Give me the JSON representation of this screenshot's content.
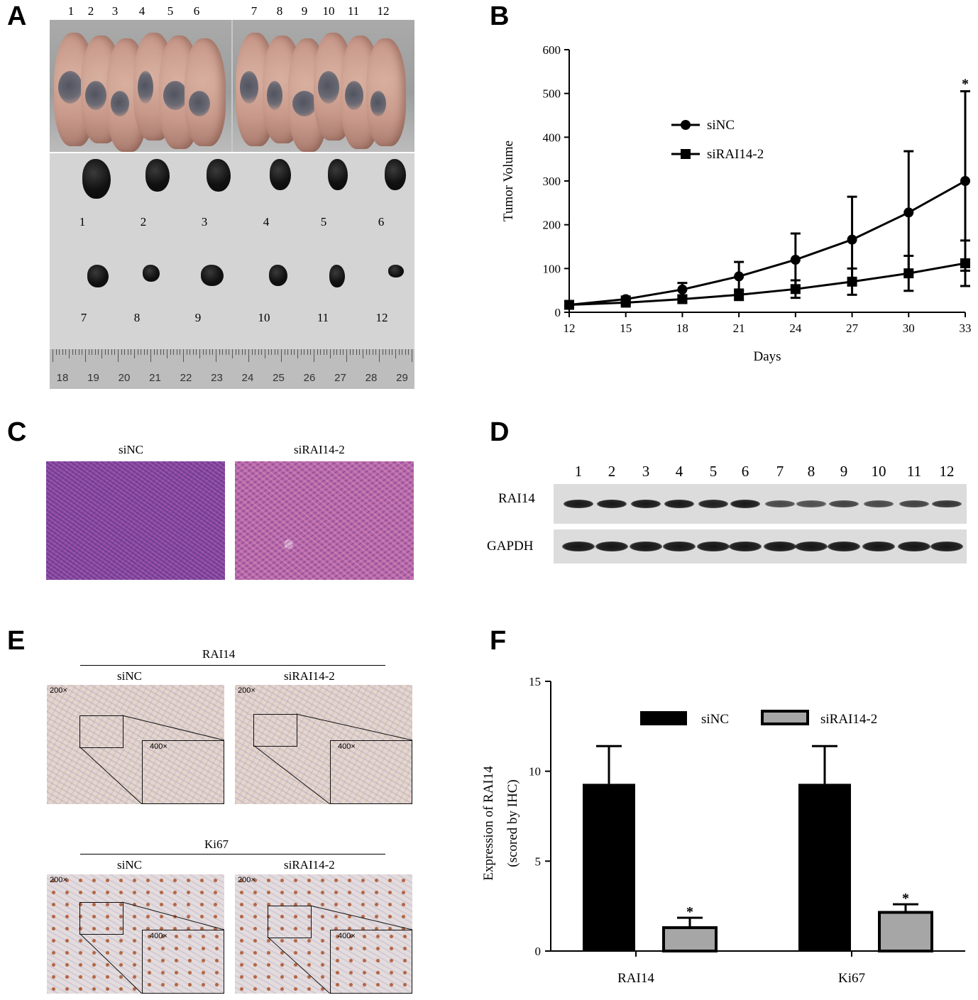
{
  "panels": {
    "a": "A",
    "b": "B",
    "c": "C",
    "d": "D",
    "e": "E",
    "f": "F"
  },
  "panel_a": {
    "mouse_numbers": [
      "1",
      "2",
      "3",
      "4",
      "5",
      "6",
      "7",
      "8",
      "9",
      "10",
      "11",
      "12"
    ],
    "tumor_numbers": [
      "1",
      "2",
      "3",
      "4",
      "5",
      "6",
      "7",
      "8",
      "9",
      "10",
      "11",
      "12"
    ],
    "ruler_ticks": [
      "18",
      "19",
      "20",
      "21",
      "22",
      "23",
      "24",
      "25",
      "26",
      "27",
      "28",
      "29"
    ]
  },
  "panel_c": {
    "left_label": "siNC",
    "right_label": "siRAI14-2"
  },
  "panel_d": {
    "lanes": [
      "1",
      "2",
      "3",
      "4",
      "5",
      "6",
      "7",
      "8",
      "9",
      "10",
      "11",
      "12"
    ],
    "row1": "RAI14",
    "row2": "GAPDH",
    "rai14_band_intensity": [
      0.9,
      0.9,
      0.9,
      0.9,
      0.85,
      0.9,
      0.55,
      0.5,
      0.6,
      0.55,
      0.6,
      0.7
    ],
    "gapdh_band_intensity": [
      0.95,
      0.95,
      0.95,
      0.95,
      0.95,
      0.95,
      0.95,
      0.95,
      0.95,
      0.95,
      0.95,
      0.95
    ]
  },
  "panel_e": {
    "top_title": "RAI14",
    "bottom_title": "Ki67",
    "col_left": "siNC",
    "col_right": "siRAI14-2",
    "mag_low": "200×",
    "mag_high": "400×"
  },
  "chart_data": [
    {
      "type": "line",
      "panel": "B",
      "ylabel": "Tumor Volume",
      "xlabel": "Days",
      "xlim": [
        12,
        33
      ],
      "ylim": [
        0,
        600
      ],
      "x_ticks": [
        "12",
        "15",
        "18",
        "21",
        "24",
        "27",
        "30",
        "33"
      ],
      "y_ticks": [
        "0",
        "100",
        "200",
        "300",
        "400",
        "500",
        "600"
      ],
      "x": [
        12,
        15,
        18,
        21,
        24,
        27,
        30,
        33
      ],
      "series": [
        {
          "name": "siNC",
          "marker": "circle",
          "values": [
            17,
            30,
            52,
            82,
            120,
            166,
            228,
            300
          ],
          "error": [
            3,
            6,
            15,
            33,
            60,
            98,
            140,
            205
          ]
        },
        {
          "name": "siRAI14-2",
          "marker": "square",
          "values": [
            17,
            22,
            30,
            40,
            53,
            70,
            89,
            112
          ],
          "error": [
            3,
            4,
            8,
            12,
            20,
            30,
            40,
            52
          ]
        }
      ],
      "annotations": [
        {
          "x": 33,
          "text": "*"
        }
      ],
      "legend": "upper-left inside"
    },
    {
      "type": "bar",
      "panel": "F",
      "ylabel": "Expression of RAI14",
      "ylabel2": "(scored by IHC)",
      "categories": [
        "RAI14",
        "Ki67"
      ],
      "ylim": [
        0,
        15
      ],
      "y_ticks": [
        "0",
        "5",
        "10",
        "15"
      ],
      "series": [
        {
          "name": "siNC",
          "color": "#000000",
          "values": [
            9.3,
            9.3
          ],
          "error": [
            2.1,
            2.1
          ]
        },
        {
          "name": "siRAI14-2",
          "color": "#a6a6a6",
          "values": [
            1.3,
            2.15
          ],
          "error": [
            0.55,
            0.45
          ]
        }
      ],
      "annotations": [
        "*",
        "*"
      ],
      "legend": "top"
    }
  ]
}
